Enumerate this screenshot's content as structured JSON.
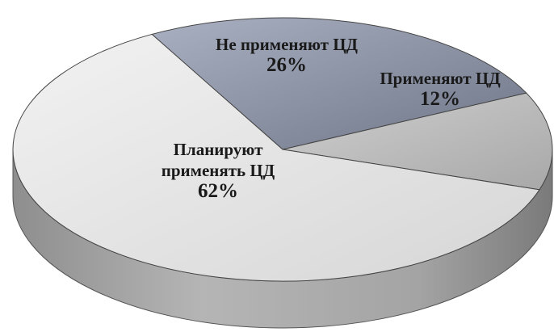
{
  "chart_data": {
    "type": "pie",
    "categories": [
      "Не применяют ЦД",
      "Применяют ЦД",
      "Планируют применять ЦД"
    ],
    "values": [
      26,
      12,
      62
    ],
    "value_labels": [
      "26%",
      "12%",
      "62%"
    ],
    "colors": [
      "#8a93a8",
      "#bcbcbc",
      "#e6e6e6"
    ]
  }
}
